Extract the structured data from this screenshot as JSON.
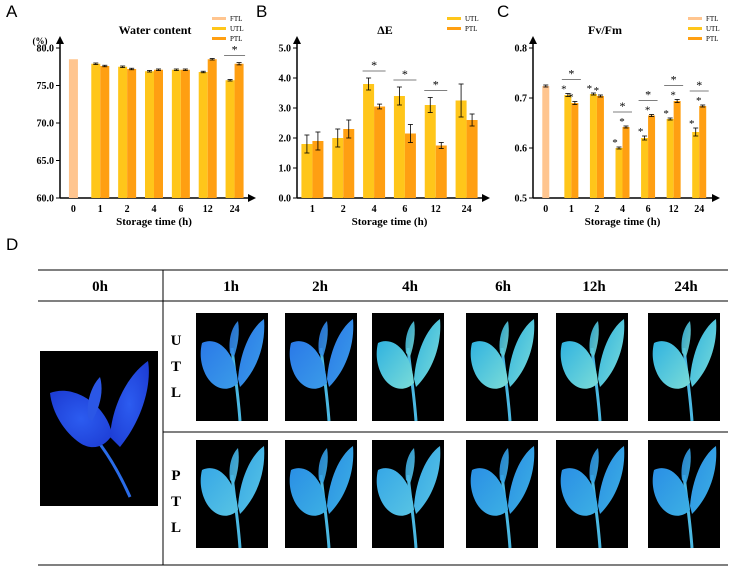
{
  "panels": {
    "A": "A",
    "B": "B",
    "C": "C",
    "D": "D"
  },
  "colors": {
    "FTL": "#FFC58F",
    "UTL": "#FFC61A",
    "PTL": "#FF9F12",
    "axis": "#000000"
  },
  "chart_data": [
    {
      "id": "A",
      "type": "bar",
      "title": "Water content",
      "ylabel": "(%)",
      "xlabel": "Storage time (h)",
      "ylim": [
        60,
        80
      ],
      "yticks": [
        "60.0",
        "65.0",
        "70.0",
        "75.0",
        "80.0"
      ],
      "legend": [
        "FTL",
        "UTL",
        "PTL"
      ],
      "groups": [
        {
          "label": "0",
          "bars": [
            {
              "series": "FTL",
              "value": 78.5,
              "err": 0
            }
          ]
        },
        {
          "label": "1",
          "bars": [
            {
              "series": "UTL",
              "value": 77.9,
              "err": 0.1
            },
            {
              "series": "PTL",
              "value": 77.6,
              "err": 0.1
            }
          ]
        },
        {
          "label": "2",
          "bars": [
            {
              "series": "UTL",
              "value": 77.5,
              "err": 0.1
            },
            {
              "series": "PTL",
              "value": 77.2,
              "err": 0.1
            }
          ]
        },
        {
          "label": "4",
          "bars": [
            {
              "series": "UTL",
              "value": 76.9,
              "err": 0.1
            },
            {
              "series": "PTL",
              "value": 77.1,
              "err": 0.1
            }
          ]
        },
        {
          "label": "6",
          "bars": [
            {
              "series": "UTL",
              "value": 77.1,
              "err": 0.1
            },
            {
              "series": "PTL",
              "value": 77.1,
              "err": 0.1
            }
          ]
        },
        {
          "label": "12",
          "bars": [
            {
              "series": "UTL",
              "value": 76.8,
              "err": 0.1
            },
            {
              "series": "PTL",
              "value": 78.5,
              "err": 0.1
            }
          ]
        },
        {
          "label": "24",
          "bars": [
            {
              "series": "UTL",
              "value": 75.7,
              "err": 0.1
            },
            {
              "series": "PTL",
              "value": 77.9,
              "err": 0.15
            }
          ]
        }
      ],
      "annotations": [
        {
          "group": "24",
          "text": "*",
          "bracket": true
        }
      ]
    },
    {
      "id": "B",
      "type": "bar",
      "title": "ΔE",
      "ylabel": "",
      "xlabel": "Storage time (h)",
      "ylim": [
        0,
        5
      ],
      "yticks": [
        "0.0",
        "1.0",
        "2.0",
        "3.0",
        "4.0",
        "5.0"
      ],
      "legend": [
        "UTL",
        "PTL"
      ],
      "groups": [
        {
          "label": "1",
          "bars": [
            {
              "series": "UTL",
              "value": 1.8,
              "err": 0.3
            },
            {
              "series": "PTL",
              "value": 1.9,
              "err": 0.3
            }
          ]
        },
        {
          "label": "2",
          "bars": [
            {
              "series": "UTL",
              "value": 2.0,
              "err": 0.3
            },
            {
              "series": "PTL",
              "value": 2.3,
              "err": 0.3
            }
          ]
        },
        {
          "label": "4",
          "bars": [
            {
              "series": "UTL",
              "value": 3.8,
              "err": 0.2
            },
            {
              "series": "PTL",
              "value": 3.05,
              "err": 0.08
            }
          ]
        },
        {
          "label": "6",
          "bars": [
            {
              "series": "UTL",
              "value": 3.4,
              "err": 0.3
            },
            {
              "series": "PTL",
              "value": 2.15,
              "err": 0.3
            }
          ]
        },
        {
          "label": "12",
          "bars": [
            {
              "series": "UTL",
              "value": 3.1,
              "err": 0.25
            },
            {
              "series": "PTL",
              "value": 1.75,
              "err": 0.1
            }
          ]
        },
        {
          "label": "24",
          "bars": [
            {
              "series": "UTL",
              "value": 3.25,
              "err": 0.55
            },
            {
              "series": "PTL",
              "value": 2.6,
              "err": 0.2
            }
          ]
        }
      ],
      "annotations": [
        {
          "group": "4",
          "text": "*",
          "bracket": true
        },
        {
          "group": "6",
          "text": "*",
          "bracket": true
        },
        {
          "group": "12",
          "text": "*",
          "bracket": true
        }
      ]
    },
    {
      "id": "C",
      "type": "bar",
      "title": "Fv/Fm",
      "ylabel": "",
      "xlabel": "Storage time (h)",
      "ylim": [
        0.5,
        0.8
      ],
      "yticks": [
        "0.5",
        "0.6",
        "0.7",
        "0.8"
      ],
      "legend": [
        "FTL",
        "UTL",
        "PTL"
      ],
      "groups": [
        {
          "label": "0",
          "bars": [
            {
              "series": "FTL",
              "value": 0.724,
              "err": 0.002
            }
          ]
        },
        {
          "label": "1",
          "bars": [
            {
              "series": "UTL",
              "value": 0.706,
              "err": 0.003
            },
            {
              "series": "PTL",
              "value": 0.69,
              "err": 0.003
            }
          ]
        },
        {
          "label": "2",
          "bars": [
            {
              "series": "UTL",
              "value": 0.708,
              "err": 0.002
            },
            {
              "series": "PTL",
              "value": 0.704,
              "err": 0.002
            }
          ]
        },
        {
          "label": "4",
          "bars": [
            {
              "series": "UTL",
              "value": 0.6,
              "err": 0.002
            },
            {
              "series": "PTL",
              "value": 0.642,
              "err": 0.002
            }
          ]
        },
        {
          "label": "6",
          "bars": [
            {
              "series": "UTL",
              "value": 0.62,
              "err": 0.004
            },
            {
              "series": "PTL",
              "value": 0.665,
              "err": 0.002
            }
          ]
        },
        {
          "label": "12",
          "bars": [
            {
              "series": "UTL",
              "value": 0.658,
              "err": 0.002
            },
            {
              "series": "PTL",
              "value": 0.694,
              "err": 0.003
            }
          ]
        },
        {
          "label": "24",
          "bars": [
            {
              "series": "UTL",
              "value": 0.632,
              "err": 0.008
            },
            {
              "series": "PTL",
              "value": 0.684,
              "err": 0.002
            }
          ]
        }
      ],
      "annotations": [
        {
          "group": "1",
          "text": "*",
          "bracket": true,
          "bar_stars": [
            "*",
            "*"
          ]
        },
        {
          "group": "2",
          "text": "",
          "bracket": false,
          "bar_stars": [
            "*",
            "*"
          ]
        },
        {
          "group": "4",
          "text": "*",
          "bracket": true,
          "bar_stars": [
            "*",
            "*"
          ]
        },
        {
          "group": "6",
          "text": "*",
          "bracket": true,
          "bar_stars": [
            "*",
            "*"
          ]
        },
        {
          "group": "12",
          "text": "*",
          "bracket": true,
          "bar_stars": [
            "*",
            "*"
          ]
        },
        {
          "group": "24",
          "text": "*",
          "bracket": true,
          "bar_stars": [
            "*",
            "*"
          ]
        }
      ]
    }
  ],
  "panel_d": {
    "col0_header": "0h",
    "headers": [
      "1h",
      "2h",
      "4h",
      "6h",
      "12h",
      "24h"
    ],
    "rows": [
      {
        "label_lines": [
          "U",
          "T",
          "L"
        ]
      },
      {
        "label_lines": [
          "P",
          "T",
          "L"
        ]
      }
    ]
  }
}
